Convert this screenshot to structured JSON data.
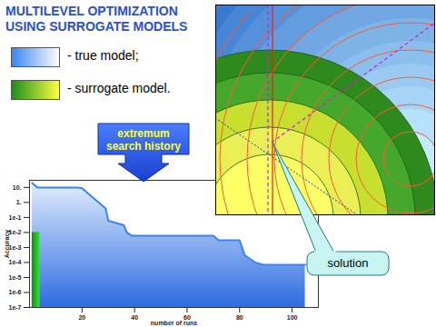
{
  "chart_data": {
    "type": "area",
    "title": "MULTILEVEL OPTIMIZATION USING SURROGATE MODELS",
    "x_label": "number of runs",
    "y_label": "Accuracy",
    "annotations": [
      "extremum search history",
      "solution"
    ],
    "series": [
      {
        "name": "- true model;",
        "color": "#3a86f0",
        "line_style": "solid",
        "x": [
          1,
          3,
          18,
          20,
          29,
          30,
          36,
          37,
          39,
          70,
          72,
          80,
          82,
          86,
          89,
          105
        ],
        "values": [
          20,
          10,
          10,
          9,
          0.4,
          0.06,
          0.03,
          0.01,
          0.006,
          0.006,
          0.003,
          0.003,
          0.0003,
          0.0001,
          7e-05,
          7e-05
        ]
      },
      {
        "name": "- surrogate model.",
        "color": "#22b022",
        "x": [
          1,
          4
        ],
        "values": [
          0.01,
          0.01
        ]
      }
    ],
    "log": "y",
    "grid": false,
    "xlim": [
      0,
      110
    ],
    "xticks": [
      20,
      40,
      60,
      80,
      100
    ],
    "ylim": [
      1e-07,
      30
    ],
    "yticks": [
      {
        "value": 10,
        "label": "10."
      },
      {
        "value": 1,
        "label": "1."
      },
      {
        "value": 0.1,
        "label": "1e-1"
      },
      {
        "value": 0.01,
        "label": "1e-2"
      },
      {
        "value": 0.001,
        "label": "1e-3"
      },
      {
        "value": 0.0001,
        "label": "1e-4"
      },
      {
        "value": 1e-05,
        "label": "1e-5"
      },
      {
        "value": 1e-06,
        "label": "1e-6"
      },
      {
        "value": 1e-07,
        "label": "1e-7"
      }
    ]
  }
}
